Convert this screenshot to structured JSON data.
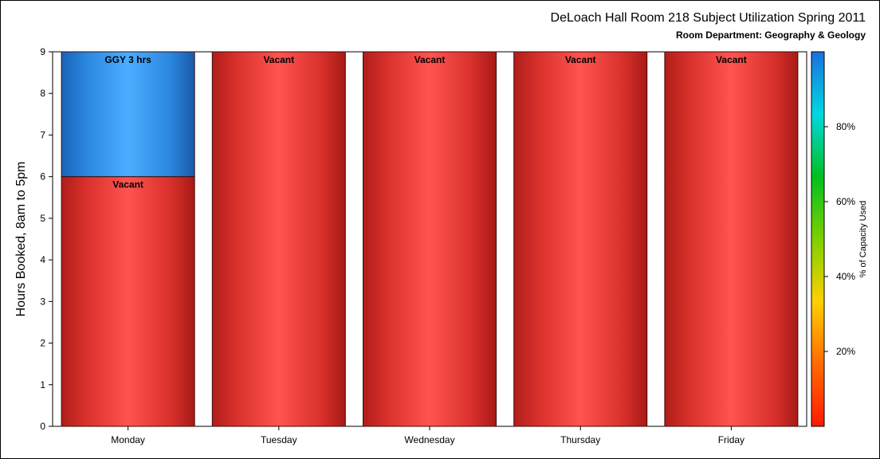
{
  "chart_data": {
    "type": "bar",
    "stacked": true,
    "title": "DeLoach Hall Room 218 Subject Utilization Spring 2011",
    "subtitle": "Room Department:  Geography & Geology",
    "xlabel": "",
    "ylabel": "Hours Booked, 8am to 5pm",
    "ylim": [
      0,
      9
    ],
    "yticks": [
      0,
      1,
      2,
      3,
      4,
      5,
      6,
      7,
      8,
      9
    ],
    "grid": false,
    "categories": [
      "Monday",
      "Tuesday",
      "Wednesday",
      "Thursday",
      "Friday"
    ],
    "series": [
      {
        "name": "Vacant",
        "values": [
          6,
          9,
          9,
          9,
          9
        ],
        "color": "#e03a36",
        "capacity_pct": 0
      },
      {
        "name": "GGY 3 hrs",
        "values": [
          3,
          0,
          0,
          0,
          0
        ],
        "color": "#2a8ee6",
        "capacity_pct": 100
      }
    ],
    "bar_labels": [
      {
        "category": "Monday",
        "segment": "GGY 3 hrs",
        "text": "GGY 3 hrs"
      },
      {
        "category": "Monday",
        "segment": "Vacant",
        "text": "Vacant"
      },
      {
        "category": "Tuesday",
        "segment": "Vacant",
        "text": "Vacant"
      },
      {
        "category": "Wednesday",
        "segment": "Vacant",
        "text": "Vacant"
      },
      {
        "category": "Thursday",
        "segment": "Vacant",
        "text": "Vacant"
      },
      {
        "category": "Friday",
        "segment": "Vacant",
        "text": "Vacant"
      }
    ],
    "legend": {
      "type": "colorbar",
      "placement": "right",
      "title": "% of Capacity Used",
      "ticks": [
        "20%",
        "40%",
        "60%",
        "80%"
      ],
      "tick_values": [
        20,
        40,
        60,
        80
      ],
      "range": [
        0,
        100
      ],
      "colors": [
        "#ff1a00",
        "#ff6a00",
        "#ffd000",
        "#7ed000",
        "#00c020",
        "#00d8e0",
        "#1a70e0"
      ]
    }
  }
}
